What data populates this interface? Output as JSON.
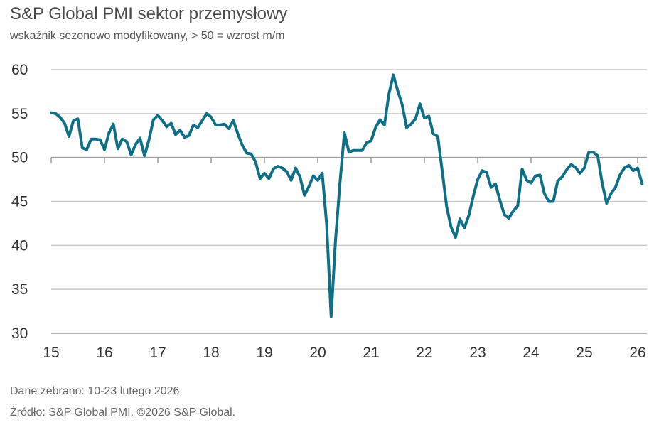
{
  "chart_data": {
    "type": "line",
    "title": "S&P Global PMI sektor przemysłowy",
    "subtitle": "wskaźnik sezonowo modyfikowany, > 50 = wzrost m/m",
    "xlabel": "",
    "ylabel": "",
    "ylim": [
      30,
      60
    ],
    "yticks": [
      "30",
      "35",
      "40",
      "45",
      "50",
      "55",
      "60"
    ],
    "xticks": [
      "15",
      "16",
      "17",
      "18",
      "19",
      "20",
      "21",
      "22",
      "23",
      "24",
      "25",
      "26"
    ],
    "x_start": "2015-01",
    "frequency": "monthly",
    "grid": true,
    "line_color": "#0e6f86",
    "series": [
      {
        "values": [
          55.1,
          55.0,
          54.6,
          53.9,
          52.4,
          54.2,
          54.4,
          51.1,
          50.9,
          52.1,
          52.1,
          52.0,
          50.9,
          52.8,
          53.8,
          51.0,
          52.1,
          51.8,
          50.3,
          51.5,
          52.2,
          50.2,
          52.0,
          54.3,
          54.8,
          54.2,
          53.5,
          53.9,
          52.6,
          53.1,
          52.3,
          52.5,
          53.7,
          53.4,
          54.2,
          55.0,
          54.6,
          53.7,
          53.7,
          53.8,
          53.3,
          54.2,
          52.7,
          51.4,
          50.5,
          50.4,
          49.5,
          47.6,
          48.2,
          47.6,
          48.7,
          49.0,
          48.8,
          48.4,
          47.4,
          48.8,
          47.8,
          45.7,
          46.7,
          47.9,
          47.4,
          48.2,
          42.4,
          31.9,
          40.6,
          47.2,
          52.8,
          50.6,
          50.8,
          50.8,
          50.8,
          51.7,
          51.9,
          53.4,
          54.3,
          53.7,
          57.2,
          59.4,
          57.6,
          56.0,
          53.4,
          53.8,
          54.4,
          56.1,
          54.5,
          54.7,
          52.7,
          52.4,
          48.5,
          44.4,
          42.1,
          40.9,
          43.0,
          42.0,
          43.4,
          45.6,
          47.5,
          48.5,
          48.3,
          46.6,
          47.0,
          45.1,
          43.5,
          43.1,
          43.9,
          44.5,
          48.7,
          47.4,
          47.1,
          47.9,
          48.0,
          45.9,
          45.0,
          45.0,
          47.3,
          47.8,
          48.6,
          49.2,
          48.9,
          48.2,
          48.8,
          50.6,
          50.6,
          50.2,
          47.1,
          44.8,
          45.9,
          46.6,
          48.0,
          48.8,
          49.1,
          48.5,
          48.8,
          47.0
        ]
      }
    ]
  },
  "footer": {
    "line1": "Dane zebrano: 10-23 lutego 2026",
    "line2": "Źródło: S&P Global PMI. ©2026 S&P Global."
  }
}
